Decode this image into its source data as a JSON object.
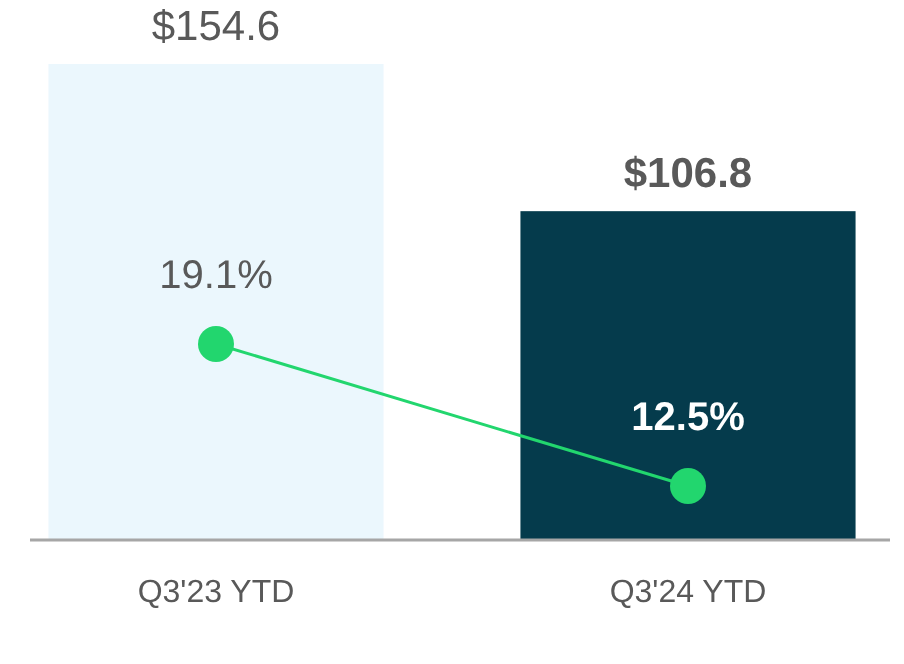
{
  "chart_data": {
    "type": "bar",
    "categories": [
      "Q3'23 YTD",
      "Q3'24 YTD"
    ],
    "tick_labels": "x",
    "series": [
      {
        "colors": [
          "#ebf7fd",
          "#053b4c"
        ],
        "values": [
          154.6,
          106.8
        ],
        "value_labels": [
          "$154.6",
          "$106.8"
        ]
      },
      {
        "type": "line",
        "axis": "y2",
        "color": "#22d66e",
        "marker": "circle",
        "values": [
          19.1,
          12.5
        ],
        "value_labels": [
          "19.1%",
          "12.5%"
        ]
      }
    ]
  }
}
